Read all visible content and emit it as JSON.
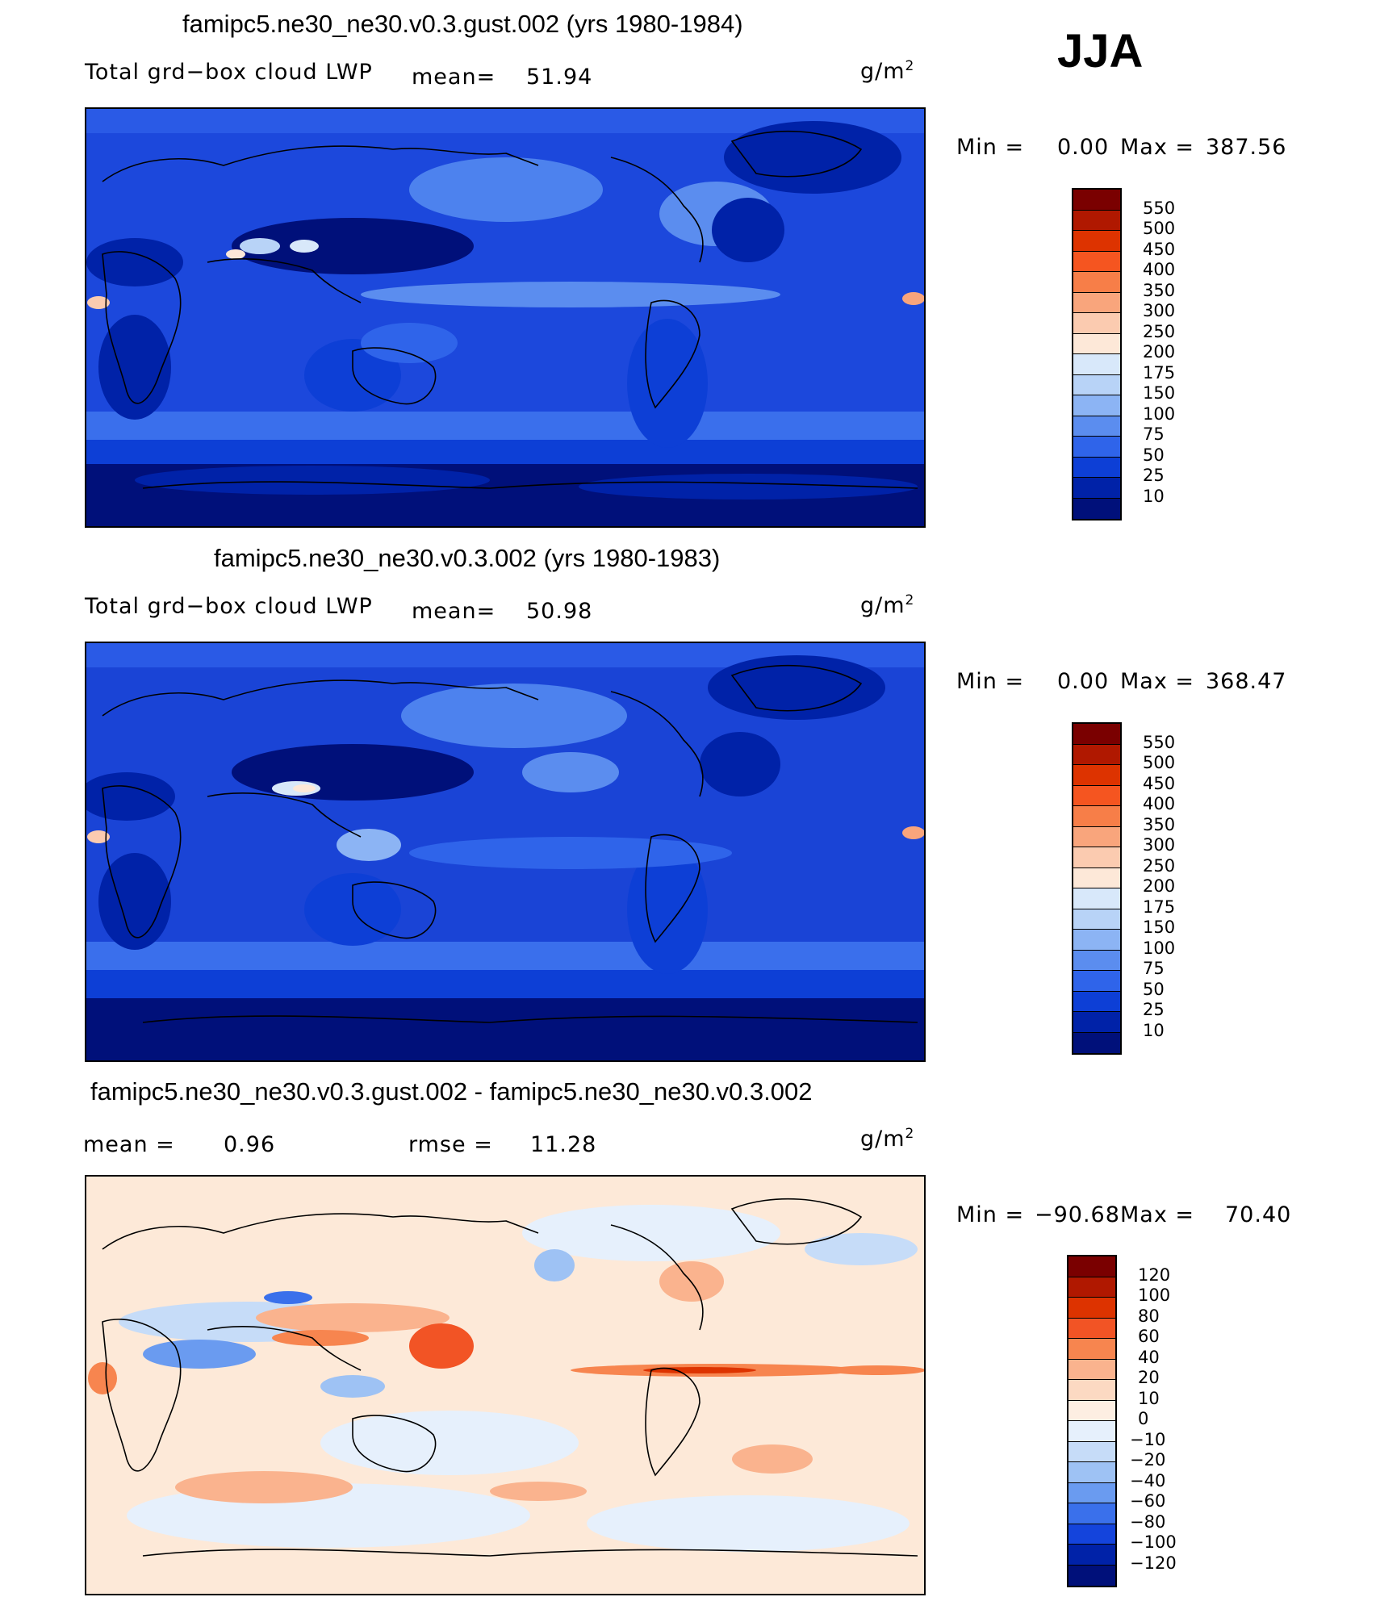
{
  "season": "JJA",
  "panels": [
    {
      "title": "famipc5.ne30_ne30.v0.3.gust.002 (yrs 1980-1984)",
      "variable": "Total grd−box cloud LWP",
      "mean_label": "mean=",
      "mean_value": "51.94",
      "units": "g/m",
      "units_sup": "2",
      "min_label": "Min  =",
      "min_value": "0.00",
      "max_label": "Max  =",
      "max_value": "387.56",
      "colorbar_labels": [
        "550",
        "500",
        "450",
        "400",
        "350",
        "300",
        "250",
        "200",
        "175",
        "150",
        "100",
        "75",
        "50",
        "25",
        "10"
      ],
      "colorbar_colors": [
        "#7a0000",
        "#b01800",
        "#dd3300",
        "#f55520",
        "#f77e48",
        "#f9a57c",
        "#fbcbb0",
        "#fde8d8",
        "#d8e8fa",
        "#b8d3f7",
        "#8cb4f4",
        "#5b8def",
        "#2f64ea",
        "#0d3fd6",
        "#0022a8",
        "#00107a"
      ],
      "background": "#1c48dc"
    },
    {
      "title": "famipc5.ne30_ne30.v0.3.002 (yrs 1980-1983)",
      "variable": "Total grd−box cloud LWP",
      "mean_label": "mean=",
      "mean_value": "50.98",
      "units": "g/m",
      "units_sup": "2",
      "min_label": "Min  =",
      "min_value": "0.00",
      "max_label": "Max  =",
      "max_value": "368.47",
      "colorbar_labels": [
        "550",
        "500",
        "450",
        "400",
        "350",
        "300",
        "250",
        "200",
        "175",
        "150",
        "100",
        "75",
        "50",
        "25",
        "10"
      ],
      "colorbar_colors": [
        "#7a0000",
        "#b01800",
        "#dd3300",
        "#f55520",
        "#f77e48",
        "#f9a57c",
        "#fbcbb0",
        "#fde8d8",
        "#d8e8fa",
        "#b8d3f7",
        "#8cb4f4",
        "#5b8def",
        "#2f64ea",
        "#0d3fd6",
        "#0022a8",
        "#00107a"
      ],
      "background": "#1a44d6"
    },
    {
      "title": "famipc5.ne30_ne30.v0.3.gust.002 - famipc5.ne30_ne30.v0.3.002",
      "mean_label": "mean  =",
      "mean_value": "0.96",
      "rmse_label": "rmse  =",
      "rmse_value": "11.28",
      "units": "g/m",
      "units_sup": "2",
      "min_label": "Min  =",
      "min_value": "−90.68",
      "max_label": "Max  =",
      "max_value": "70.40",
      "colorbar_labels": [
        "120",
        "100",
        "80",
        "60",
        "40",
        "20",
        "10",
        "0",
        "−10",
        "−20",
        "−40",
        "−60",
        "−80",
        "−100",
        "−120"
      ],
      "colorbar_colors": [
        "#7a0000",
        "#b01800",
        "#dd3300",
        "#f25425",
        "#f7854f",
        "#fab38e",
        "#fcd9c2",
        "#fdeee2",
        "#e6f0fc",
        "#c6dcf8",
        "#9ec2f4",
        "#6a9bf0",
        "#3a70eb",
        "#1444dc",
        "#0022a8",
        "#00107a"
      ],
      "background": "#fde9d8"
    }
  ],
  "chart_data": [
    {
      "type": "heatmap",
      "title": "famipc5.ne30_ne30.v0.3.gust.002 (yrs 1980-1984)",
      "variable": "Total grd−box cloud LWP",
      "units": "g/m2",
      "mean": 51.94,
      "min": 0.0,
      "max": 387.56,
      "contour_levels": [
        10,
        25,
        50,
        75,
        100,
        150,
        175,
        200,
        250,
        300,
        350,
        400,
        450,
        500,
        550
      ]
    },
    {
      "type": "heatmap",
      "title": "famipc5.ne30_ne30.v0.3.002 (yrs 1980-1983)",
      "variable": "Total grd−box cloud LWP",
      "units": "g/m2",
      "mean": 50.98,
      "min": 0.0,
      "max": 368.47,
      "contour_levels": [
        10,
        25,
        50,
        75,
        100,
        150,
        175,
        200,
        250,
        300,
        350,
        400,
        450,
        500,
        550
      ]
    },
    {
      "type": "heatmap",
      "title": "famipc5.ne30_ne30.v0.3.gust.002 - famipc5.ne30_ne30.v0.3.002",
      "units": "g/m2",
      "mean": 0.96,
      "rmse": 11.28,
      "min": -90.68,
      "max": 70.4,
      "contour_levels": [
        -120,
        -100,
        -80,
        -60,
        -40,
        -20,
        -10,
        0,
        10,
        20,
        40,
        60,
        80,
        100,
        120
      ]
    }
  ]
}
